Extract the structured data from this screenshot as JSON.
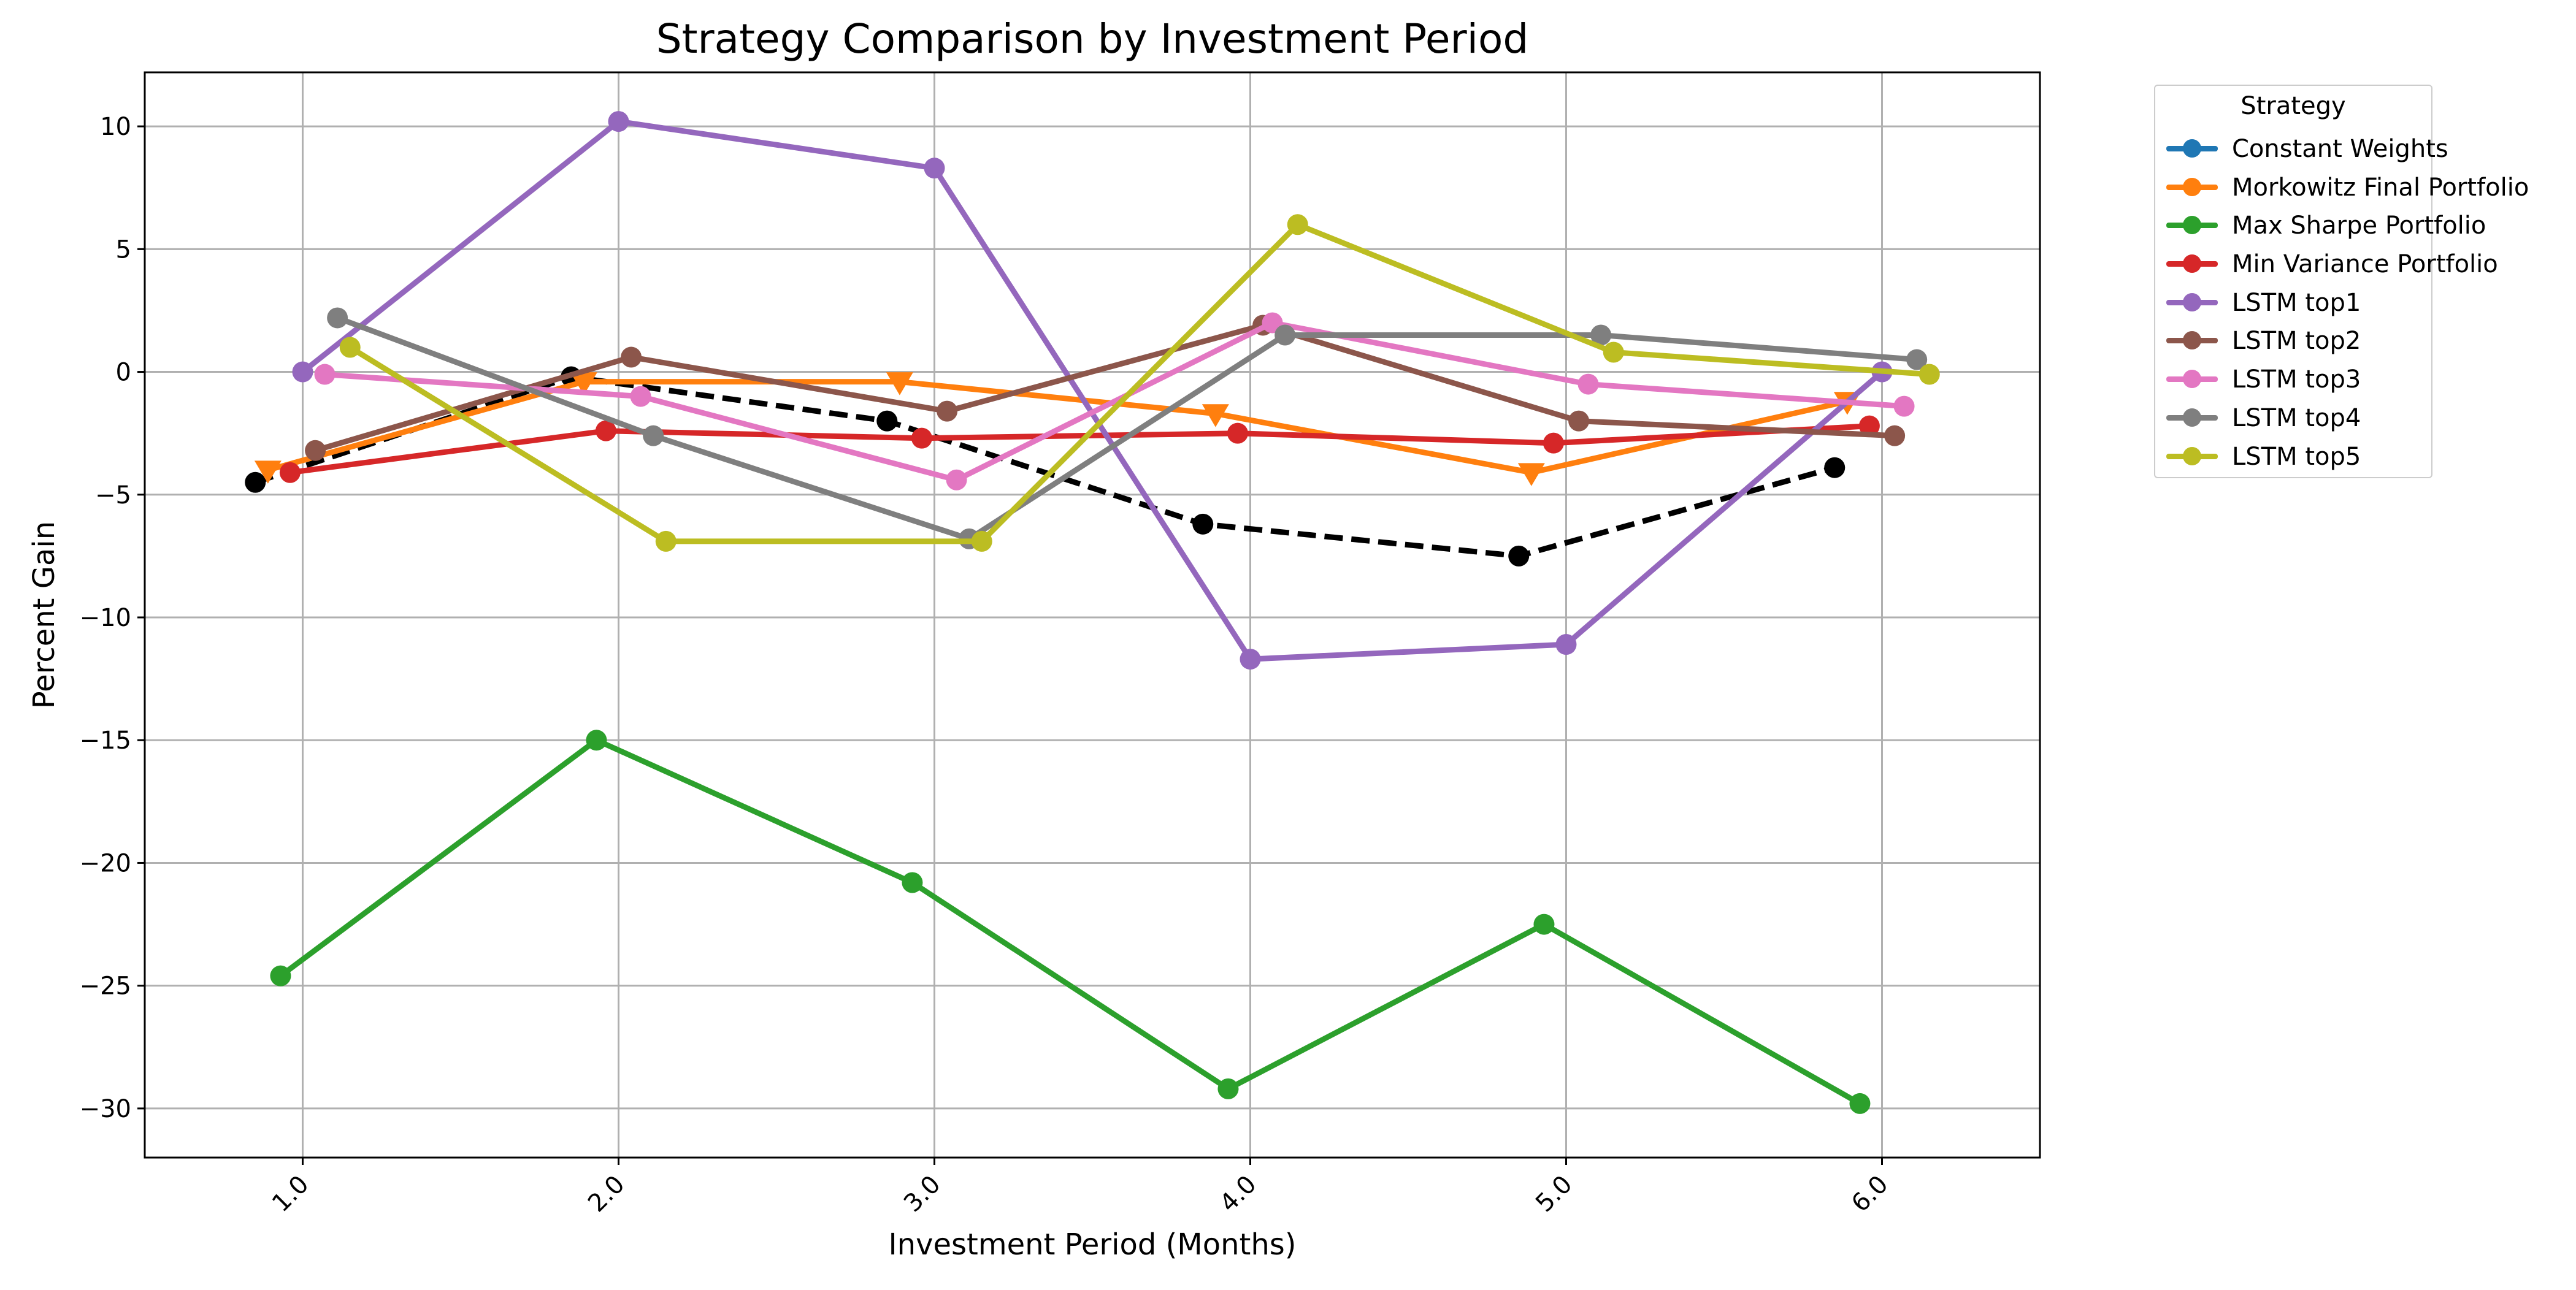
{
  "chart_data": {
    "type": "line",
    "title": "Strategy Comparison by Investment Period",
    "xlabel": "Investment Period (Months)",
    "ylabel": "Percent Gain",
    "x_ticks": [
      "1.0",
      "2.0",
      "3.0",
      "4.0",
      "5.0",
      "6.0"
    ],
    "y_ticks": [
      "10",
      "5",
      "0",
      "−5",
      "−10",
      "−15",
      "−20",
      "−25",
      "−30"
    ],
    "xlim": [
      0.5,
      6.5
    ],
    "ylim": [
      -32,
      12.2
    ],
    "grid": true,
    "legend": {
      "title": "Strategy",
      "placement": "outside-right"
    },
    "series": [
      {
        "name": "Constant Weights",
        "color": "#000000",
        "legend_color": "#1f77b4",
        "marker": "circle",
        "dashed": true,
        "x": [
          0.85,
          1.85,
          2.85,
          3.85,
          4.85,
          5.85
        ],
        "y": [
          -4.5,
          -0.2,
          -2.0,
          -6.2,
          -7.5,
          -3.9
        ]
      },
      {
        "name": "Morkowitz Final Portfolio",
        "color": "#ff7f0e",
        "marker": "triangle-down",
        "x": [
          0.89,
          1.89,
          2.89,
          3.89,
          4.89,
          5.89
        ],
        "y": [
          -4.0,
          -0.4,
          -0.4,
          -1.7,
          -4.1,
          -1.2
        ]
      },
      {
        "name": "Max Sharpe Portfolio",
        "color": "#2ca02c",
        "marker": "circle",
        "x": [
          0.93,
          1.93,
          2.93,
          3.93,
          4.93,
          5.93
        ],
        "y": [
          -24.6,
          -15.0,
          -20.8,
          -29.2,
          -22.5,
          -29.8
        ]
      },
      {
        "name": "Min Variance Portfolio",
        "color": "#d62728",
        "marker": "circle",
        "x": [
          0.96,
          1.96,
          2.96,
          3.96,
          4.96,
          5.96
        ],
        "y": [
          -4.1,
          -2.4,
          -2.7,
          -2.5,
          -2.9,
          -2.2
        ]
      },
      {
        "name": "LSTM top1",
        "color": "#9467bd",
        "marker": "circle",
        "x": [
          1.0,
          2.0,
          3.0,
          4.0,
          5.0,
          6.0
        ],
        "y": [
          0.0,
          10.2,
          8.3,
          -11.7,
          -11.1,
          0.0
        ]
      },
      {
        "name": "LSTM top2",
        "color": "#8c564b",
        "marker": "circle",
        "x": [
          1.04,
          2.04,
          3.04,
          4.04,
          5.04,
          6.04
        ],
        "y": [
          -3.2,
          0.6,
          -1.6,
          1.9,
          -2.0,
          -2.6
        ]
      },
      {
        "name": "LSTM top3",
        "color": "#e377c2",
        "marker": "circle",
        "x": [
          1.07,
          2.07,
          3.07,
          4.07,
          5.07,
          6.07
        ],
        "y": [
          -0.1,
          -1.0,
          -4.4,
          2.0,
          -0.5,
          -1.4
        ]
      },
      {
        "name": "LSTM top4",
        "color": "#7f7f7f",
        "marker": "circle",
        "x": [
          1.11,
          2.11,
          3.11,
          4.11,
          5.11,
          6.11
        ],
        "y": [
          2.2,
          -2.6,
          -6.8,
          1.5,
          1.5,
          0.5
        ]
      },
      {
        "name": "LSTM top5",
        "color": "#bcbd22",
        "marker": "circle",
        "x": [
          1.15,
          2.15,
          3.15,
          4.15,
          5.15,
          6.15
        ],
        "y": [
          1.0,
          -6.9,
          -6.9,
          6.0,
          0.8,
          -0.1
        ]
      }
    ]
  }
}
